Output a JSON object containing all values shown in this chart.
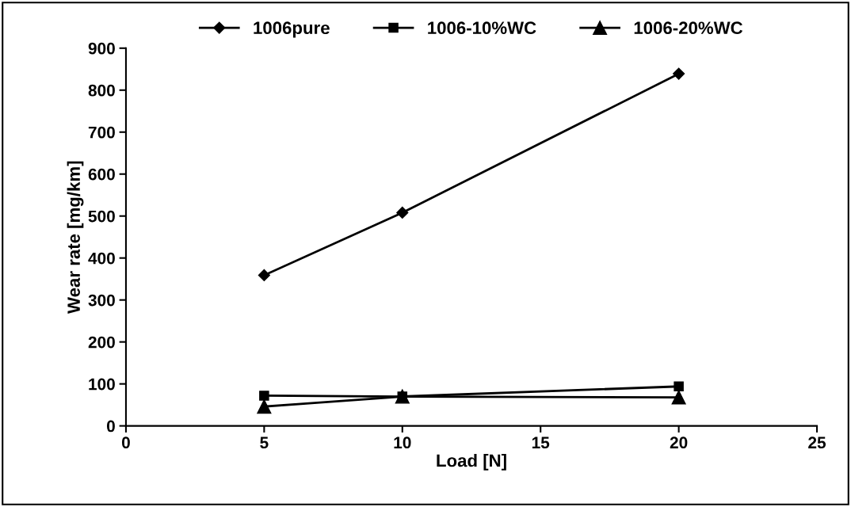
{
  "chart_data": {
    "type": "line",
    "xlabel": "Load [N]",
    "ylabel": "Wear rate [mg/km]",
    "x": [
      5,
      10,
      20
    ],
    "series": [
      {
        "name": "1006pure",
        "color": "#000000",
        "marker": "diamond",
        "values": [
          359,
          508,
          839
        ]
      },
      {
        "name": "1006-10%WC",
        "color": "#000000",
        "marker": "square",
        "values": [
          72,
          70,
          94
        ]
      },
      {
        "name": "1006-20%WC",
        "color": "#000000",
        "marker": "triangle",
        "values": [
          46,
          70,
          68
        ]
      }
    ],
    "xlim": [
      0,
      25
    ],
    "xticks": [
      0,
      5,
      10,
      15,
      20,
      25
    ],
    "ylim": [
      0,
      900
    ],
    "yticks": [
      0,
      100,
      200,
      300,
      400,
      500,
      600,
      700,
      800,
      900
    ],
    "grid": false,
    "legend": "top",
    "line_style": "solid"
  }
}
